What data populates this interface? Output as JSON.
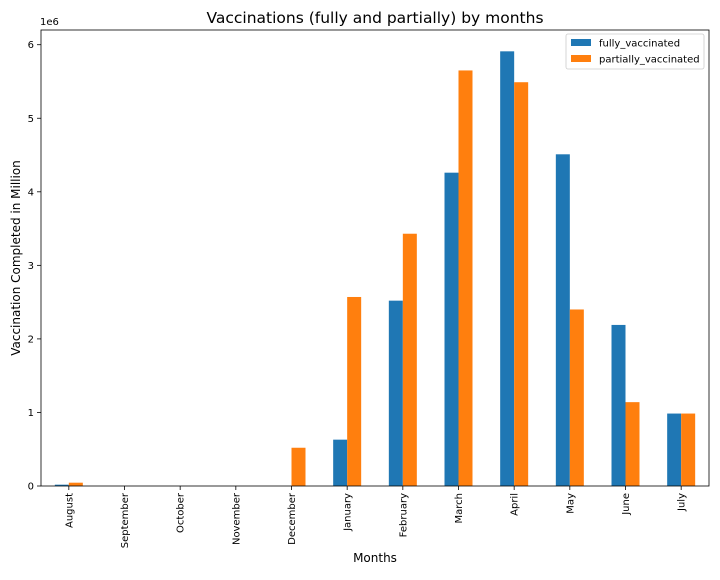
{
  "chart_data": {
    "type": "bar",
    "title": "Vaccinations (fully and partially) by months",
    "xlabel": "Months",
    "ylabel": "Vaccination Completed in Million",
    "y_offset_label": "1e6",
    "categories": [
      "August",
      "September",
      "October",
      "November",
      "December",
      "January",
      "February",
      "March",
      "April",
      "May",
      "June",
      "July"
    ],
    "series": [
      {
        "name": "fully_vaccinated",
        "color": "#1f77b4",
        "values": [
          18000,
          0,
          0,
          0,
          0,
          630000,
          2520000,
          4260000,
          5910000,
          4510000,
          2190000,
          985000
        ]
      },
      {
        "name": "partially_vaccinated",
        "color": "#ff7f0e",
        "values": [
          45000,
          0,
          0,
          0,
          520000,
          2570000,
          3430000,
          5650000,
          5490000,
          2400000,
          1140000,
          985000
        ]
      }
    ],
    "ylim": [
      0,
      6200000
    ],
    "yticks": [
      0,
      1000000,
      2000000,
      3000000,
      4000000,
      5000000,
      6000000
    ],
    "ytick_labels": [
      "0",
      "1",
      "2",
      "3",
      "4",
      "5",
      "6"
    ],
    "grid": false,
    "legend_position": "top-right"
  }
}
